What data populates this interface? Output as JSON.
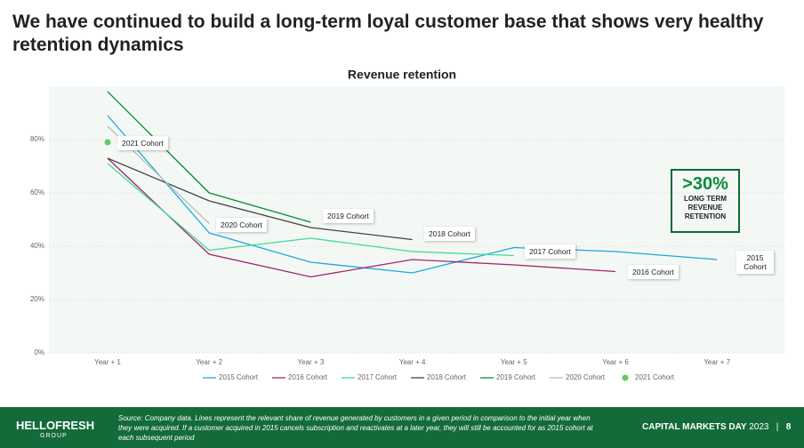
{
  "header": {
    "title": "We have continued to build a long-term loyal customer base that shows very healthy retention dynamics"
  },
  "chart_data": {
    "type": "line",
    "title": "Revenue retention",
    "categories": [
      "Year + 1",
      "Year + 2",
      "Year + 3",
      "Year + 4",
      "Year + 5",
      "Year + 6",
      "Year + 7"
    ],
    "ylim": [
      0,
      100
    ],
    "yticks": [
      {
        "value": 0,
        "label": "0%"
      },
      {
        "value": 20,
        "label": "20%"
      },
      {
        "value": 40,
        "label": "40%"
      },
      {
        "value": 60,
        "label": "60%"
      },
      {
        "value": 80,
        "label": "80%"
      }
    ],
    "series": [
      {
        "name": "2015 Cohort",
        "color": "#1ea7e1",
        "values": [
          89,
          45,
          34,
          30,
          39.5,
          38,
          35
        ]
      },
      {
        "name": "2016 Cohort",
        "color": "#a3246e",
        "values": [
          73,
          37,
          28.5,
          35,
          33,
          30.5,
          null
        ]
      },
      {
        "name": "2017 Cohort",
        "color": "#3ddc97",
        "values": [
          71,
          38.5,
          43,
          38,
          36.5,
          null,
          null
        ]
      },
      {
        "name": "2018 Cohort",
        "color": "#444444",
        "values": [
          73,
          57,
          47,
          42.5,
          null,
          null,
          null
        ]
      },
      {
        "name": "2019 Cohort",
        "color": "#0a8a3c",
        "values": [
          98,
          60,
          49,
          null,
          null,
          null,
          null
        ]
      },
      {
        "name": "2020 Cohort",
        "color": "#bbbbbb",
        "values": [
          85,
          48.5,
          null,
          null,
          null,
          null,
          null
        ]
      },
      {
        "name": "2021 Cohort",
        "color": "#5ecc5e",
        "marker": "point",
        "values": [
          79,
          null,
          null,
          null,
          null,
          null,
          null
        ]
      }
    ],
    "callout": {
      "value": ">30%",
      "text": "LONG TERM REVENUE RETENTION"
    }
  },
  "footer": {
    "logo": "HELLOFRESH",
    "logo_sub": "GROUP",
    "source": "Source: Company data. Lines represent the relevant share of revenue generated by customers in a given period in comparison to the initial year when they were acquired. If a customer acquired in 2015 cancels subscription and reactivates at a later year, they will still be accounted for as 2015 cohort at each subsequent period",
    "event": "CAPITAL MARKETS DAY",
    "year": "2023",
    "separator": "|",
    "page": "8"
  }
}
